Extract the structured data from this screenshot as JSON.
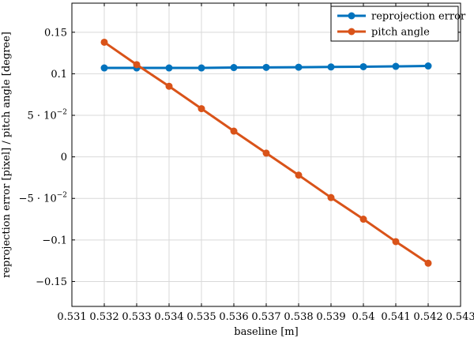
{
  "chart_data": {
    "type": "line",
    "xlabel": "baseline [m]",
    "ylabel": "reprojection error [pixel] / pitch angle [degree]",
    "xlim": [
      0.531,
      0.543
    ],
    "ylim": [
      -0.18,
      0.185
    ],
    "grid": true,
    "legend_position": "top-right",
    "x_ticks": [
      0.531,
      0.532,
      0.533,
      0.534,
      0.535,
      0.536,
      0.537,
      0.538,
      0.539,
      0.54,
      0.541,
      0.542,
      0.543
    ],
    "x_tick_labels": [
      "0.531",
      "0.532",
      "0.533",
      "0.534",
      "0.535",
      "0.536",
      "0.537",
      "0.538",
      "0.539",
      "0.54",
      "0.541",
      "0.542",
      "0.543"
    ],
    "y_ticks": [
      {
        "value": 0.15,
        "mantissa": "0.15",
        "exp": ""
      },
      {
        "value": 0.1,
        "mantissa": "0.1",
        "exp": ""
      },
      {
        "value": 0.05,
        "mantissa": "5 · 10",
        "exp": "−2"
      },
      {
        "value": 0,
        "mantissa": "0",
        "exp": ""
      },
      {
        "value": -0.05,
        "mantissa": "−5 · 10",
        "exp": "−2"
      },
      {
        "value": -0.1,
        "mantissa": "−0.1",
        "exp": ""
      },
      {
        "value": -0.15,
        "mantissa": "−0.15",
        "exp": ""
      }
    ],
    "x": [
      0.532,
      0.533,
      0.534,
      0.535,
      0.536,
      0.537,
      0.538,
      0.539,
      0.54,
      0.541,
      0.542
    ],
    "series": [
      {
        "name": "reprojection error",
        "color": "#0072bd",
        "values": [
          0.107,
          0.107,
          0.107,
          0.107,
          0.1075,
          0.1077,
          0.1079,
          0.1082,
          0.1085,
          0.1089,
          0.1094
        ]
      },
      {
        "name": "pitch angle",
        "color": "#d95319",
        "values": [
          0.138,
          0.111,
          0.085,
          0.058,
          0.031,
          0.0045,
          -0.022,
          -0.049,
          -0.075,
          -0.102,
          -0.128
        ]
      }
    ]
  }
}
